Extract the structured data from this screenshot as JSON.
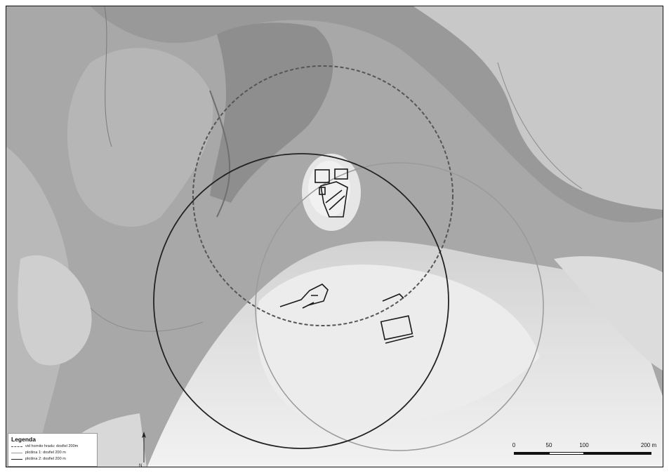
{
  "legend": {
    "title": "Legenda",
    "items": [
      {
        "label": "vid hornito hradu: dosfiel 200m"
      },
      {
        "label": "plošina 1: dosfiel 200 m"
      },
      {
        "label": "plošina 2: dosfiel 200 m"
      }
    ]
  },
  "north_label": "N",
  "scale": {
    "ticks": [
      "0",
      "50",
      "100",
      "200 m"
    ]
  },
  "colors": {
    "circle_dashed": "#555555",
    "circle_light": "#9a9a9a",
    "circle_dark": "#222222",
    "ruins": "#1a1a1a"
  }
}
